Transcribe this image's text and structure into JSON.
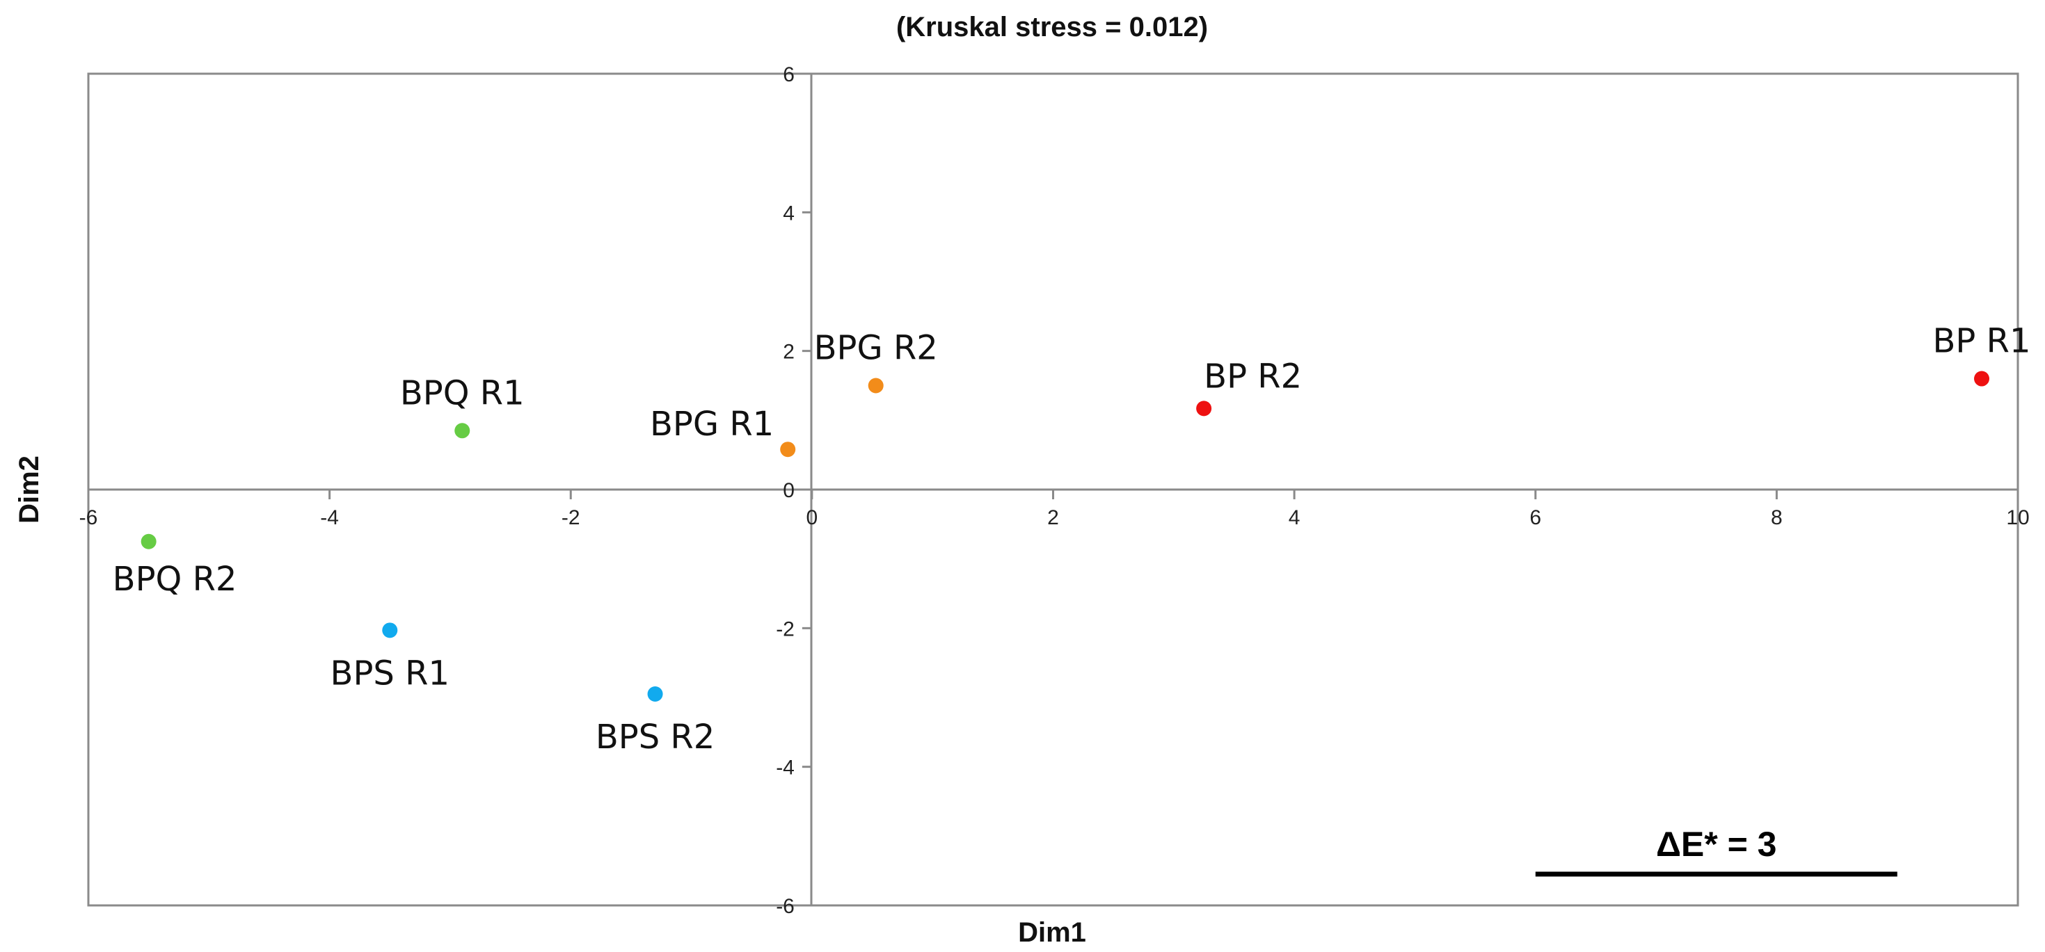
{
  "chart_data": {
    "type": "scatter",
    "title": "(Kruskal stress = 0.012)",
    "xlabel": "Dim1",
    "ylabel": "Dim2",
    "xlim": [
      -6,
      10
    ],
    "ylim": [
      -6,
      6
    ],
    "xticks": [
      -6,
      -4,
      -2,
      0,
      2,
      4,
      6,
      8,
      10
    ],
    "yticks": [
      -6,
      -4,
      -2,
      0,
      2,
      4,
      6
    ],
    "grid": false,
    "points": [
      {
        "label": "BP R1",
        "x": 9.7,
        "y": 1.6,
        "color": "#ee1111",
        "label_pos": "above"
      },
      {
        "label": "BP R2",
        "x": 3.25,
        "y": 1.17,
        "color": "#ee1111",
        "label_pos": "above-right"
      },
      {
        "label": "BPG R1",
        "x": -0.2,
        "y": 0.58,
        "color": "#f28c1a",
        "label_pos": "above-left"
      },
      {
        "label": "BPG R2",
        "x": 0.53,
        "y": 1.5,
        "color": "#f28c1a",
        "label_pos": "above"
      },
      {
        "label": "BPQ R1",
        "x": -2.9,
        "y": 0.85,
        "color": "#66cc44",
        "label_pos": "above"
      },
      {
        "label": "BPQ R2",
        "x": -5.5,
        "y": -0.75,
        "color": "#66cc44",
        "label_pos": "below-right"
      },
      {
        "label": "BPS R1",
        "x": -3.5,
        "y": -2.03,
        "color": "#11aaee",
        "label_pos": "below"
      },
      {
        "label": "BPS R2",
        "x": -1.3,
        "y": -2.95,
        "color": "#11aaee",
        "label_pos": "below"
      }
    ],
    "scale_bar": {
      "label": "ΔE* = 3",
      "length": 3
    }
  }
}
